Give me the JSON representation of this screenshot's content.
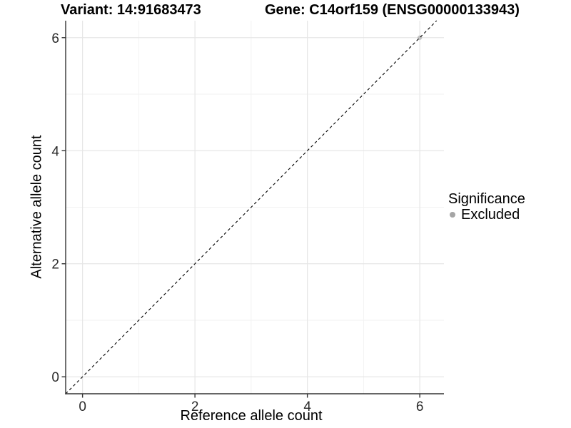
{
  "titles": {
    "left": "Variant: 14:91683473",
    "right": "Gene: C14orf159 (ENSG00000133943)"
  },
  "chart_data": {
    "type": "scatter",
    "title": "Variant: 14:91683473   Gene: C14orf159 (ENSG00000133943)",
    "xlabel": "Reference allele count",
    "ylabel": "Alternative allele count",
    "xlim": [
      -0.3,
      6.43
    ],
    "ylim": [
      -0.3,
      6.3
    ],
    "x_ticks": [
      0,
      2,
      4,
      6
    ],
    "y_ticks": [
      0,
      2,
      4,
      6
    ],
    "x_minor_ticks": [
      1,
      3,
      5
    ],
    "y_minor_ticks": [
      1,
      3,
      5
    ],
    "grid": true,
    "identity_line": {
      "slope": 1,
      "intercept": 0,
      "style": "dashed",
      "color": "#000000"
    },
    "series": [
      {
        "name": "Excluded",
        "color": "#a5a5a5",
        "opacity": 0.6,
        "points": [
          {
            "x": 6,
            "y": 6
          }
        ]
      }
    ],
    "legend": {
      "position": "right",
      "title": "Significance",
      "items": [
        {
          "label": "Excluded",
          "color": "#a5a5a5"
        }
      ]
    },
    "style": {
      "grid_major": "#e6e6e6",
      "grid_minor": "#f2f2f2",
      "axis_color": "#333333",
      "tick_label_color": "#2b2b2b",
      "line_color": "#000000",
      "point_radius": 3.2,
      "tick_label_font_px": 19
    }
  }
}
